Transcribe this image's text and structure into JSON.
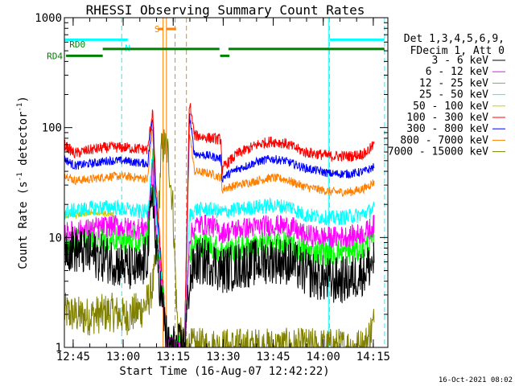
{
  "chart_data": {
    "type": "line",
    "title": "RHESSI Observing Summary Count Rates",
    "xlabel": "Start Time (16-Aug-07 12:42:22)",
    "ylabel": "Count Rate (s⁻¹ detector⁻¹)",
    "ylabel_parts": [
      "Count Rate (s",
      "-1",
      " detector",
      "-1",
      ")"
    ],
    "y_scale": "log",
    "ylim": [
      1,
      1000
    ],
    "xlim_minutes": [
      0,
      97
    ],
    "x_ticks": [
      {
        "label": "12:45",
        "minutes": 2.63
      },
      {
        "label": "13:00",
        "minutes": 17.63
      },
      {
        "label": "13:15",
        "minutes": 32.63
      },
      {
        "label": "13:30",
        "minutes": 47.63
      },
      {
        "label": "13:45",
        "minutes": 62.63
      },
      {
        "label": "14:00",
        "minutes": 77.63
      },
      {
        "label": "14:15",
        "minutes": 92.63
      }
    ],
    "y_ticks": [
      {
        "label": "1",
        "value": 1
      },
      {
        "label": "10",
        "value": 10
      },
      {
        "label": "100",
        "value": 100
      },
      {
        "label": "1000",
        "value": 1000
      }
    ],
    "legend": {
      "header": [
        "Det 1,3,4,5,6,9,",
        "FDecim 1, Att 0"
      ],
      "position": "right"
    },
    "series": [
      {
        "name": "3 - 6 keV",
        "color": "#000000",
        "knots": [
          [
            0,
            8.5
          ],
          [
            2,
            8
          ],
          [
            8,
            7
          ],
          [
            15,
            6
          ],
          [
            20,
            5.2
          ],
          [
            23,
            5
          ],
          [
            25,
            7
          ],
          [
            26.5,
            30
          ],
          [
            27.2,
            9
          ],
          [
            29,
            3
          ],
          [
            31,
            1
          ],
          [
            36,
            1
          ],
          [
            37.5,
            4
          ],
          [
            39.5,
            6
          ],
          [
            44,
            6
          ],
          [
            47,
            5
          ],
          [
            52,
            5.5
          ],
          [
            58,
            6
          ],
          [
            62,
            6.3
          ],
          [
            68,
            6
          ],
          [
            72,
            4.8
          ],
          [
            80,
            4
          ],
          [
            86,
            4.2
          ],
          [
            90,
            5
          ],
          [
            93,
            6.2
          ]
        ],
        "noise": 0.22
      },
      {
        "name": "6 - 12 keV",
        "color": "#ff00ff",
        "knots": [
          [
            0,
            11
          ],
          [
            8,
            12
          ],
          [
            15,
            13
          ],
          [
            18,
            12.3
          ],
          [
            23,
            12
          ],
          [
            25,
            13
          ],
          [
            26.5,
            45
          ],
          [
            27.2,
            14
          ],
          [
            29,
            4
          ],
          [
            31,
            1
          ],
          [
            36,
            1
          ],
          [
            37.5,
            10
          ],
          [
            39.5,
            13
          ],
          [
            44,
            13
          ],
          [
            47,
            11
          ],
          [
            52,
            12
          ],
          [
            58,
            12.5
          ],
          [
            62,
            13
          ],
          [
            68,
            12.5
          ],
          [
            72,
            10.5
          ],
          [
            80,
            10
          ],
          [
            86,
            10.3
          ],
          [
            90,
            11
          ],
          [
            93,
            13
          ]
        ],
        "noise": 0.1
      },
      {
        "name": "12 - 25 keV",
        "color": "#00ff00",
        "knots": [
          [
            0,
            9
          ],
          [
            8,
            9.5
          ],
          [
            15,
            9.8
          ],
          [
            18,
            9.3
          ],
          [
            23,
            9
          ],
          [
            25,
            10
          ],
          [
            26.5,
            55
          ],
          [
            27.2,
            11
          ],
          [
            29,
            4
          ],
          [
            31,
            1
          ],
          [
            36,
            1
          ],
          [
            37.5,
            7.5
          ],
          [
            39.5,
            8.8
          ],
          [
            44,
            8.5
          ],
          [
            47,
            7.5
          ],
          [
            52,
            8
          ],
          [
            58,
            8.5
          ],
          [
            62,
            9
          ],
          [
            68,
            8.6
          ],
          [
            72,
            7.5
          ],
          [
            80,
            7.3
          ],
          [
            86,
            7.5
          ],
          [
            90,
            8
          ],
          [
            93,
            9.5
          ]
        ],
        "noise": 0.12
      },
      {
        "name": "25 - 50 keV",
        "color": "#00ffff",
        "knots": [
          [
            0,
            17
          ],
          [
            8,
            18.5
          ],
          [
            15,
            19
          ],
          [
            18,
            18
          ],
          [
            23,
            17
          ],
          [
            25,
            17.5
          ],
          [
            26.5,
            60
          ],
          [
            27.2,
            18
          ],
          [
            29,
            5
          ],
          [
            31,
            1
          ],
          [
            36,
            1
          ],
          [
            37.5,
            16
          ],
          [
            39.5,
            18
          ],
          [
            44,
            18
          ],
          [
            47,
            17
          ],
          [
            52,
            18
          ],
          [
            58,
            19
          ],
          [
            62,
            19.5
          ],
          [
            68,
            19
          ],
          [
            72,
            16
          ],
          [
            80,
            15
          ],
          [
            86,
            15.5
          ],
          [
            90,
            16.5
          ],
          [
            93,
            18.5
          ]
        ],
        "noise": 0.07
      },
      {
        "name": "50 - 100 keV",
        "color": "#cccc00",
        "knots": [
          [
            0,
            16
          ],
          [
            4,
            16
          ],
          [
            8,
            17
          ],
          [
            11,
            17
          ],
          [
            14,
            16
          ],
          [
            15,
            15.8
          ]
        ],
        "noise": 0.03
      },
      {
        "name": "100 - 300 keV",
        "color": "#ff0000",
        "knots": [
          [
            0,
            70
          ],
          [
            3,
            58
          ],
          [
            8,
            63
          ],
          [
            13,
            66
          ],
          [
            18,
            66
          ],
          [
            22,
            64
          ],
          [
            25,
            63
          ],
          [
            26.5,
            150
          ],
          [
            27.2,
            40
          ],
          [
            29,
            6
          ],
          [
            31,
            1
          ],
          [
            36,
            1
          ],
          [
            37.5,
            175
          ],
          [
            39,
            85
          ],
          [
            44,
            80
          ],
          [
            47,
            78
          ],
          [
            47.3,
            38
          ],
          [
            48,
            45
          ],
          [
            52,
            58
          ],
          [
            58,
            70
          ],
          [
            62,
            75
          ],
          [
            66,
            72
          ],
          [
            72,
            60
          ],
          [
            80,
            55
          ],
          [
            86,
            55
          ],
          [
            90,
            58
          ],
          [
            93,
            70
          ]
        ],
        "noise": 0.05
      },
      {
        "name": "300 - 800 keV",
        "color": "#0000ff",
        "knots": [
          [
            0,
            52
          ],
          [
            3,
            45
          ],
          [
            8,
            47
          ],
          [
            13,
            50
          ],
          [
            18,
            50
          ],
          [
            22,
            48
          ],
          [
            25,
            47
          ],
          [
            26.5,
            130
          ],
          [
            27.2,
            30
          ],
          [
            29,
            5
          ],
          [
            31,
            1
          ],
          [
            36,
            1
          ],
          [
            37.5,
            130
          ],
          [
            39,
            58
          ],
          [
            44,
            55
          ],
          [
            47,
            52
          ],
          [
            47.3,
            34
          ],
          [
            48,
            36
          ],
          [
            52,
            42
          ],
          [
            58,
            49
          ],
          [
            62,
            52
          ],
          [
            66,
            50
          ],
          [
            72,
            43
          ],
          [
            80,
            38
          ],
          [
            86,
            38
          ],
          [
            90,
            40
          ],
          [
            93,
            44
          ]
        ],
        "noise": 0.04
      },
      {
        "name": "800 - 7000 keV",
        "color": "#ff8000",
        "knots": [
          [
            0,
            38
          ],
          [
            3,
            33
          ],
          [
            8,
            34
          ],
          [
            13,
            36
          ],
          [
            18,
            36
          ],
          [
            22,
            35
          ],
          [
            25,
            34
          ],
          [
            26.5,
            105
          ],
          [
            27.2,
            22
          ],
          [
            29,
            4
          ],
          [
            31,
            1
          ],
          [
            36,
            1
          ],
          [
            37.5,
            95
          ],
          [
            39,
            40
          ],
          [
            44,
            38
          ],
          [
            47,
            35
          ],
          [
            47.3,
            27
          ],
          [
            48,
            28
          ],
          [
            52,
            30
          ],
          [
            58,
            33
          ],
          [
            62,
            35
          ],
          [
            66,
            34
          ],
          [
            72,
            29
          ],
          [
            80,
            26
          ],
          [
            86,
            26
          ],
          [
            90,
            28
          ],
          [
            93,
            32
          ]
        ],
        "noise": 0.04
      },
      {
        "name": "7000 - 15000 keV",
        "color": "#808000",
        "knots": [
          [
            0,
            2.1
          ],
          [
            6,
            1.9
          ],
          [
            14,
            2.1
          ],
          [
            18,
            1.9
          ],
          [
            23,
            2.2
          ],
          [
            25,
            2.6
          ],
          [
            26.8,
            4
          ],
          [
            28,
            10
          ],
          [
            29,
            60
          ],
          [
            30,
            70
          ],
          [
            31,
            60
          ],
          [
            32.5,
            20
          ],
          [
            33.5,
            3
          ],
          [
            34,
            1.5
          ],
          [
            36,
            1
          ],
          [
            90,
            1
          ],
          [
            93,
            1.7
          ]
        ],
        "noise": 0.18
      }
    ],
    "vertical_markers": [
      {
        "kind": "solid",
        "color": "#00ffff",
        "minutes": 0
      },
      {
        "kind": "dashed",
        "color": "#00ffff",
        "minutes": 17.2
      },
      {
        "kind": "dashed",
        "color": "#00ffff",
        "minutes": 79.5
      },
      {
        "kind": "solid",
        "color": "#00ffff",
        "minutes": 79.2
      },
      {
        "kind": "dashed",
        "color": "#00ffff",
        "minutes": 96
      },
      {
        "kind": "solid",
        "color": "#ff8000",
        "minutes": 29.6
      },
      {
        "kind": "solid",
        "color": "#ff8000",
        "minutes": 30.6
      },
      {
        "kind": "dashed",
        "color": "#ff8000",
        "minutes": 33.2
      },
      {
        "kind": "dashed",
        "color": "#ff8000",
        "minutes": 36.6
      }
    ],
    "flag_bars": [
      {
        "label": "",
        "color": "#00ffff",
        "minutes": [
          0,
          17.2
        ],
        "value": 630
      },
      {
        "label": "N",
        "color": "#00ffff",
        "minutes": [
          17.2,
          19
        ],
        "value": 630
      },
      {
        "label": "",
        "color": "#00ffff",
        "minutes": [
          79.5,
          96
        ],
        "value": 630
      },
      {
        "label": "S",
        "color": "#ff8000",
        "minutes": [
          30.6,
          33.5
        ],
        "value": 790
      },
      {
        "label": "",
        "color": "#ff8000",
        "minutes": [
          28,
          29.6
        ],
        "value": 790
      },
      {
        "label": "RD0",
        "color": "#008000",
        "minutes": [
          11.5,
          46.5
        ],
        "value": 520
      },
      {
        "label": "",
        "color": "#008000",
        "minutes": [
          49.2,
          96
        ],
        "value": 520
      },
      {
        "label": "RD4",
        "color": "#008000",
        "minutes": [
          0.5,
          11.5
        ],
        "value": 450
      },
      {
        "label": "",
        "color": "#008000",
        "minutes": [
          46.7,
          49.5
        ],
        "value": 450
      }
    ]
  },
  "footer": {
    "timestamp": "16-Oct-2021 08:02"
  }
}
